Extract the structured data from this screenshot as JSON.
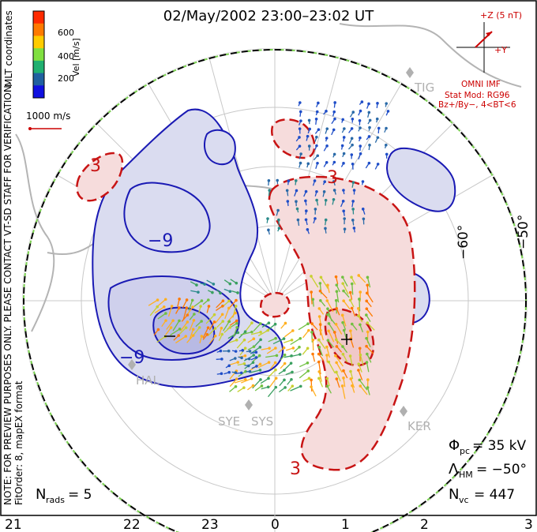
{
  "title": "02/May/2002 23:00–23:02 UT",
  "colorbar": {
    "label": "Vel [m/s]",
    "ticks": [
      "600",
      "400",
      "200"
    ],
    "colors": [
      "#ff2a00",
      "#ff7a00",
      "#ffcc00",
      "#80e040",
      "#20b070",
      "#2060a0",
      "#1010e0"
    ]
  },
  "coord_label": "MLT coordinates",
  "ref_vector": "1000 m/s",
  "preview_note": "NOTE: FOR PREVIEW PURPOSES ONLY. PLEASE CONTACT VT-SD STAFF FOR VERIFICATION.",
  "fit_note": "FitOrder: 8, mapEX format",
  "imf": {
    "bz_label": "+Z (5 nT)",
    "by_label": "+Y",
    "source": "OMNI IMF",
    "stat_mod": "Stat Mod: RG96",
    "condition": "Bz+/By−, 4<BT<6"
  },
  "stations": [
    "TIG",
    "HAL",
    "SYE",
    "SYS",
    "KER"
  ],
  "lat_labels": [
    "−60°",
    "−50°"
  ],
  "mlt_labels": [
    "21",
    "22",
    "23",
    "0",
    "1",
    "2",
    "3"
  ],
  "contour_labels": [
    "3",
    "−9",
    "−9",
    "3",
    "3"
  ],
  "stats": {
    "phi_pc": "= 35 kV",
    "lambda_hm": "= −50°",
    "n_vc": "= 447",
    "n_rads": "= 5"
  },
  "colors": {
    "negative_fill": "#dadcf0",
    "negative_line": "#1a1ab4",
    "positive_fill": "#f6dcdc",
    "positive_line": "#c81414",
    "grid": "#c8c8c8",
    "boundary_green": "#7ad050"
  }
}
